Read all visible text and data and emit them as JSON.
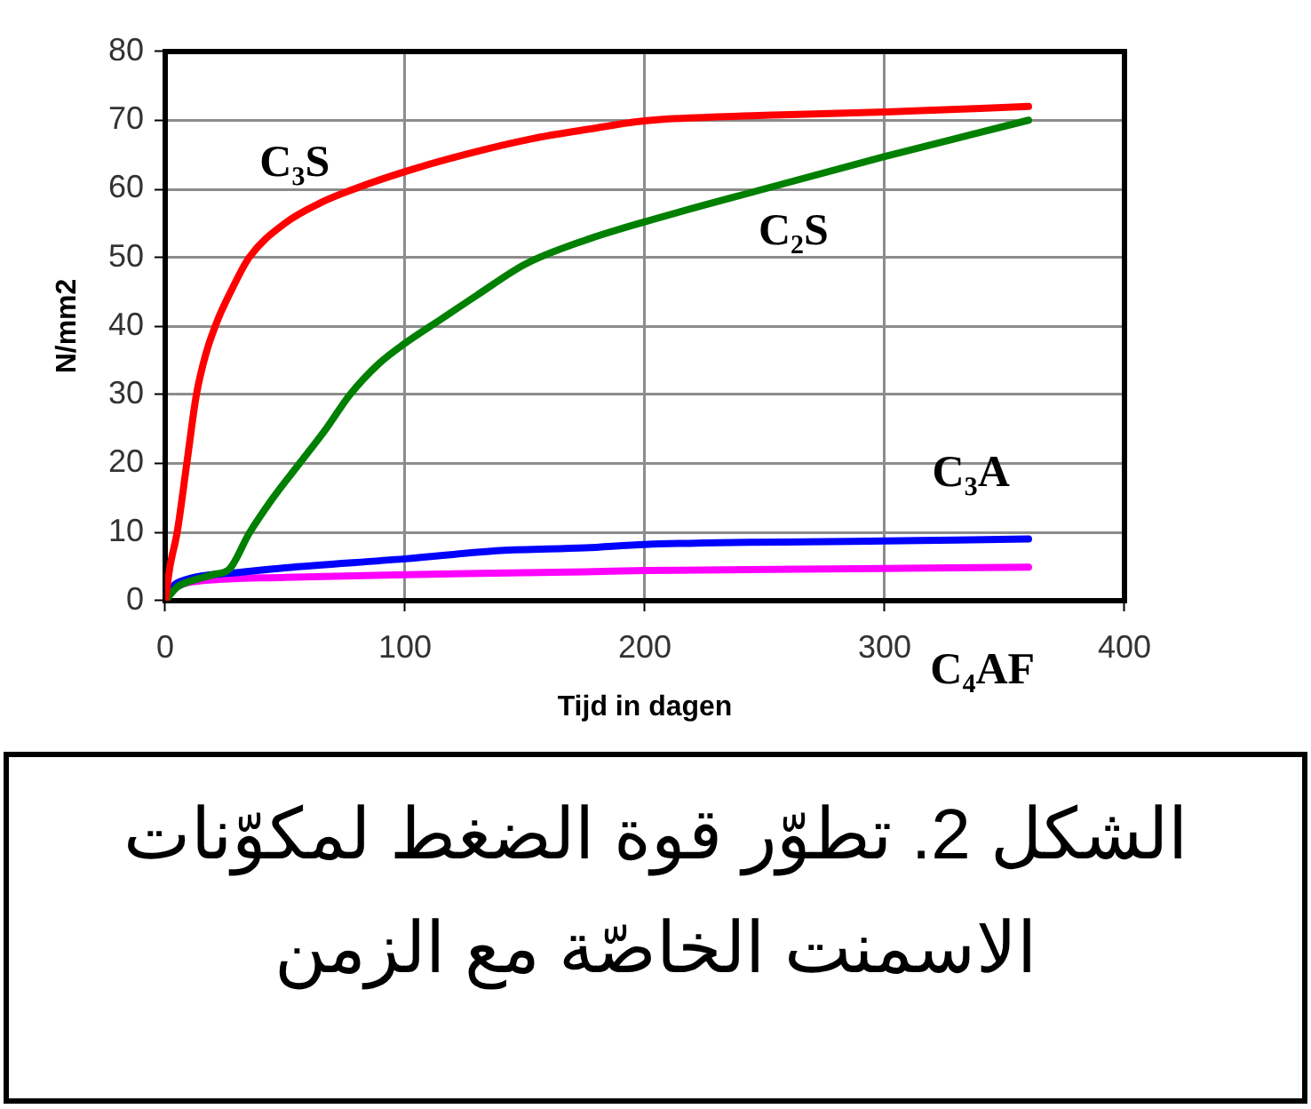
{
  "chart_data": {
    "type": "line",
    "xlabel": "Tijd in dagen",
    "ylabel": "N/mm2",
    "xlim": [
      0,
      400
    ],
    "xticks": [
      0,
      100,
      200,
      300,
      400
    ],
    "ylim": [
      0,
      80
    ],
    "yticks": [
      0,
      10,
      20,
      30,
      40,
      50,
      60,
      70,
      80
    ],
    "grid": true,
    "marker": "none",
    "series": [
      {
        "name": "C₃S",
        "color": "#ff0000",
        "x": [
          0,
          2,
          5,
          9,
          13,
          17,
          22,
          28,
          35,
          50,
          65,
          79,
          100,
          125,
          153,
          175,
          200,
          250,
          300,
          360
        ],
        "values": [
          0,
          5,
          10,
          20,
          30,
          36,
          41,
          45.5,
          50,
          55,
          58,
          60,
          62.5,
          65,
          67.3,
          68.6,
          69.9,
          70.7,
          71.2,
          72
        ]
      },
      {
        "name": "C₂S",
        "color": "#008000",
        "x": [
          0,
          5,
          10,
          20,
          27,
          35,
          45,
          56,
          67,
          77,
          89,
          100,
          115,
          130,
          150,
          175,
          200,
          250,
          300,
          360
        ],
        "values": [
          0,
          2,
          2.8,
          3.8,
          4.7,
          9.8,
          15,
          20,
          25,
          30,
          34.5,
          37.5,
          41,
          44.5,
          49,
          52.5,
          55.2,
          60,
          64.7,
          70
        ]
      },
      {
        "name": "C₃A",
        "color": "#0000ff",
        "x": [
          0,
          3,
          8,
          15,
          27,
          50,
          100,
          140,
          175,
          200,
          300,
          360
        ],
        "values": [
          0,
          2,
          3,
          3.6,
          4,
          4.8,
          6.1,
          7.3,
          7.7,
          8.2,
          8.7,
          9
        ]
      },
      {
        "name": "C₄AF",
        "color": "#ff00ff",
        "x": [
          0,
          3,
          8,
          15,
          50,
          100,
          175,
          200,
          300,
          360
        ],
        "values": [
          0,
          1.5,
          2.5,
          2.9,
          3.4,
          3.8,
          4.2,
          4.4,
          4.7,
          4.9
        ]
      }
    ],
    "annotations": [
      "الشكل 2. تطوّر قوة الضغط لمكوّنات الاسمنت الخاصّة مع الزمن"
    ]
  }
}
